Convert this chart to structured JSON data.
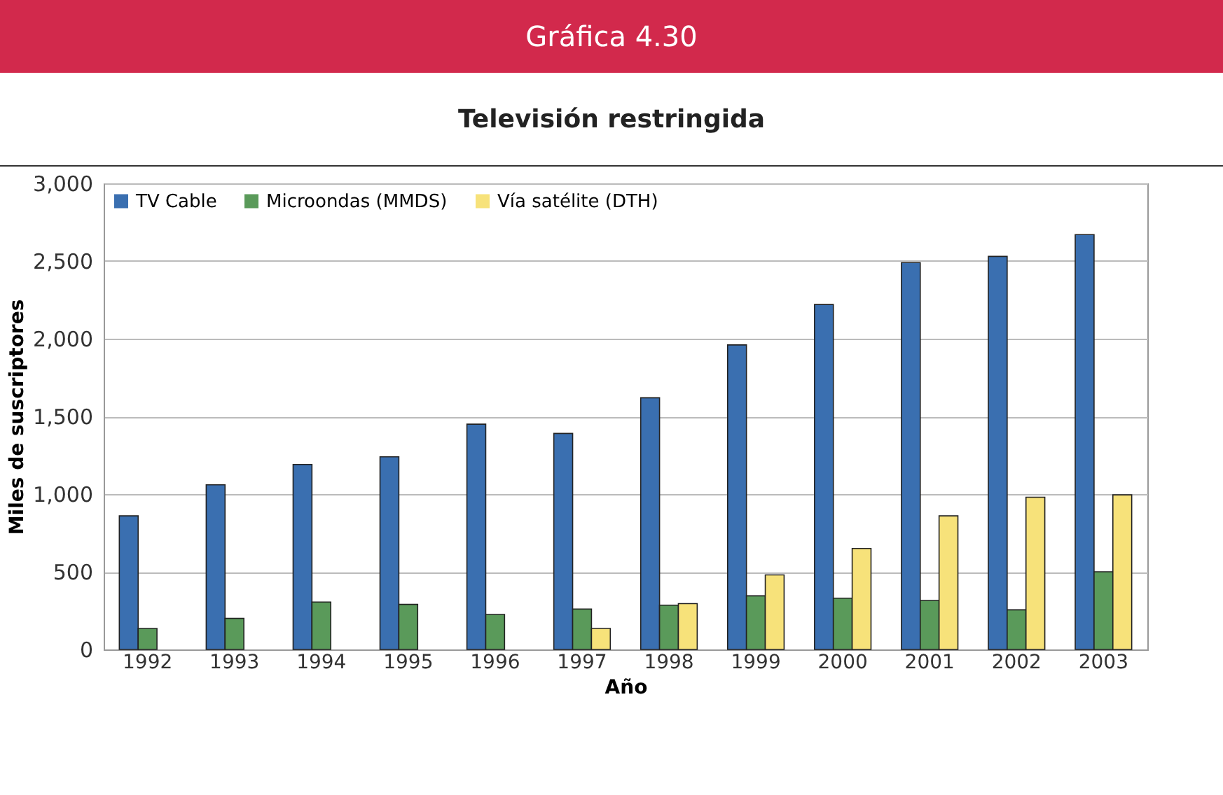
{
  "chart_data": {
    "type": "bar",
    "title": "Gráfica 4.30",
    "subtitle": "Televisión restringida",
    "xlabel": "Año",
    "ylabel": "Miles de suscriptores",
    "categories": [
      "1992",
      "1993",
      "1994",
      "1995",
      "1996",
      "1997",
      "1998",
      "1999",
      "2000",
      "2001",
      "2002",
      "2003"
    ],
    "series": [
      {
        "name": "TV Cable",
        "color": "#3a6fb0",
        "values": [
          860,
          1060,
          1190,
          1240,
          1450,
          1390,
          1620,
          1960,
          2220,
          2490,
          2530,
          2670
        ]
      },
      {
        "name": "Microondas (MMDS)",
        "color": "#5a9a5a",
        "values": [
          135,
          200,
          305,
          290,
          225,
          260,
          285,
          345,
          330,
          315,
          255,
          500
        ]
      },
      {
        "name": "Vía satélite (DTH)",
        "color": "#f7e27a",
        "values": [
          null,
          null,
          null,
          null,
          null,
          135,
          295,
          480,
          650,
          860,
          980,
          995
        ]
      }
    ],
    "ylim": [
      0,
      3000
    ],
    "yticks": [
      {
        "value": 0,
        "label": "0"
      },
      {
        "value": 500,
        "label": "500"
      },
      {
        "value": 1000,
        "label": "1,000"
      },
      {
        "value": 1500,
        "label": "1,500"
      },
      {
        "value": 2000,
        "label": "2,000"
      },
      {
        "value": 2500,
        "label": "2,500"
      },
      {
        "value": 3000,
        "label": "3,000"
      }
    ],
    "grid": "y",
    "legend": "top left"
  }
}
